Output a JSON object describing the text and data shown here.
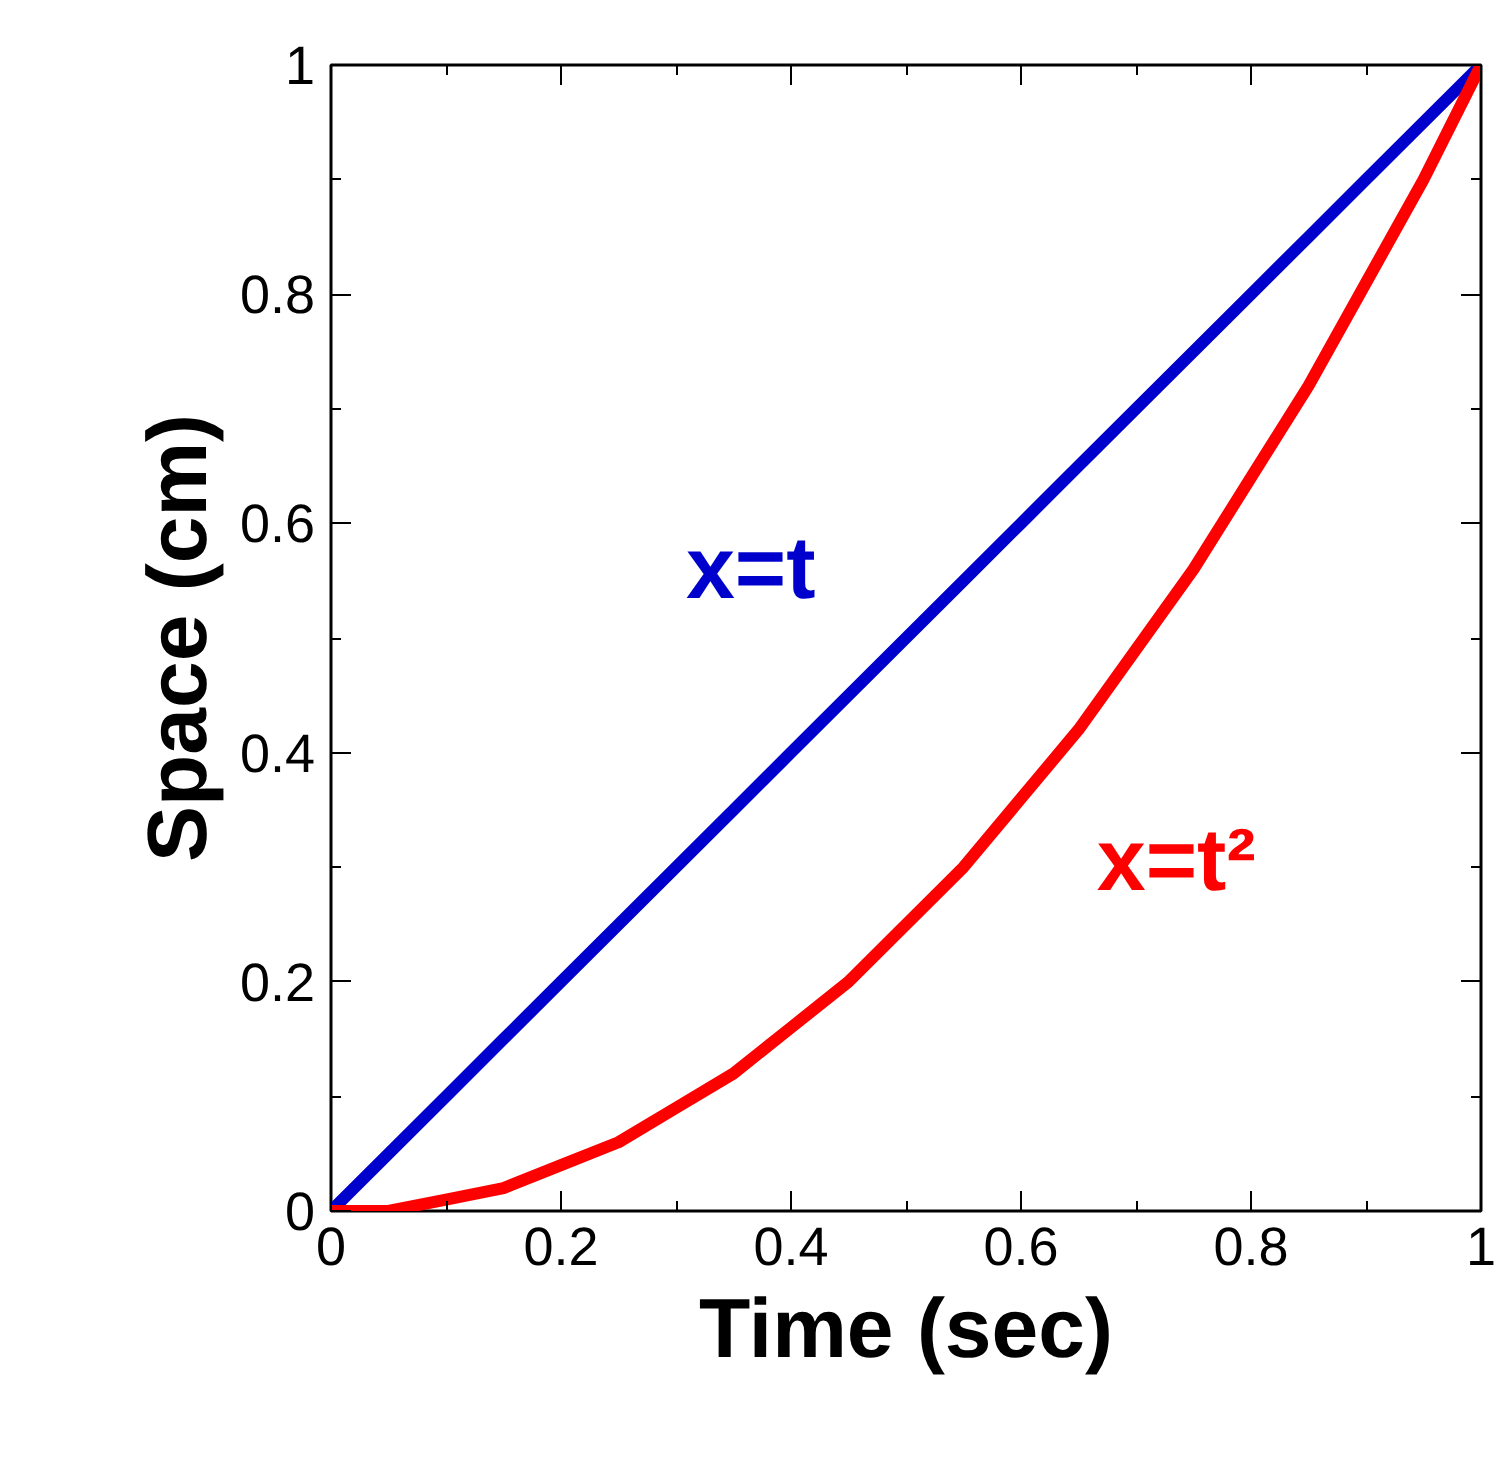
{
  "chart_data": {
    "type": "line",
    "xlabel": "Time (sec)",
    "ylabel": "Space (cm)",
    "xlim": [
      0,
      1
    ],
    "ylim": [
      0,
      1
    ],
    "xticks": [
      0,
      0.2,
      0.4,
      0.6,
      0.8,
      1
    ],
    "yticks": [
      0,
      0.2,
      0.4,
      0.6,
      0.8,
      1
    ],
    "x": [
      0,
      0.05,
      0.1,
      0.15,
      0.2,
      0.25,
      0.3,
      0.35,
      0.4,
      0.45,
      0.5,
      0.55,
      0.6,
      0.65,
      0.7,
      0.75,
      0.8,
      0.85,
      0.9,
      0.95,
      1
    ],
    "series": [
      {
        "name": "x=t",
        "color": "#0000cc",
        "values": [
          0,
          0.05,
          0.1,
          0.15,
          0.2,
          0.25,
          0.3,
          0.35,
          0.4,
          0.45,
          0.5,
          0.55,
          0.6,
          0.65,
          0.7,
          0.75,
          0.8,
          0.85,
          0.9,
          0.95,
          1
        ]
      },
      {
        "name": "x=t²",
        "color": "#ff0000",
        "values": [
          0,
          0,
          0.01,
          0.02,
          0.04,
          0.06,
          0.09,
          0.12,
          0.16,
          0.2,
          0.25,
          0.3,
          0.36,
          0.42,
          0.49,
          0.56,
          0.64,
          0.72,
          0.81,
          0.9,
          1
        ]
      }
    ],
    "grid": false,
    "marker": "none",
    "line_style": "solid"
  }
}
